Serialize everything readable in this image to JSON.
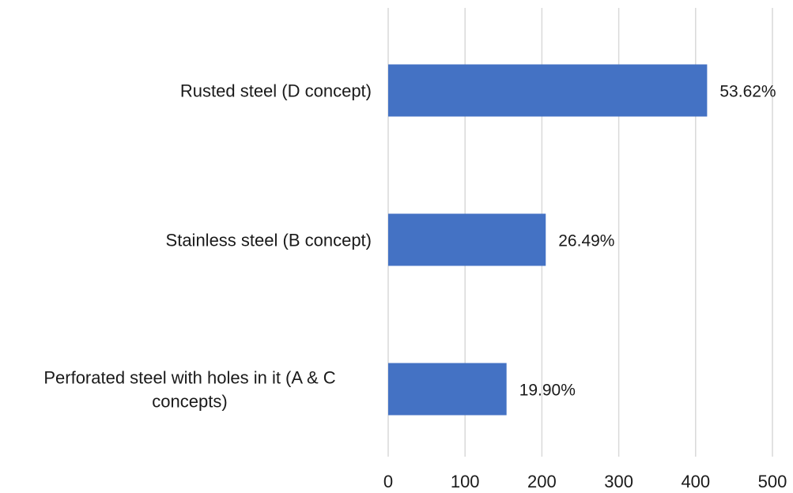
{
  "chart_data": {
    "type": "bar",
    "orientation": "horizontal",
    "categories": [
      "Rusted steel (D concept)",
      "Stainless steel (B concept)",
      "Perforated steel with holes in it (A & C concepts)"
    ],
    "category_lines": [
      [
        "Rusted steel (D concept)"
      ],
      [
        "Stainless steel (B concept)"
      ],
      [
        "Perforated steel with holes in it (A & C",
        "concepts)"
      ]
    ],
    "values": [
      415,
      205,
      154
    ],
    "data_labels": [
      "53.62%",
      "26.49%",
      "19.90%"
    ],
    "xlim": [
      0,
      500
    ],
    "x_ticks": [
      0,
      100,
      200,
      300,
      400,
      500
    ],
    "title": "",
    "xlabel": "",
    "ylabel": "",
    "grid": true,
    "bar_color": "#4472C4",
    "grid_color": "#d9d9d9"
  }
}
